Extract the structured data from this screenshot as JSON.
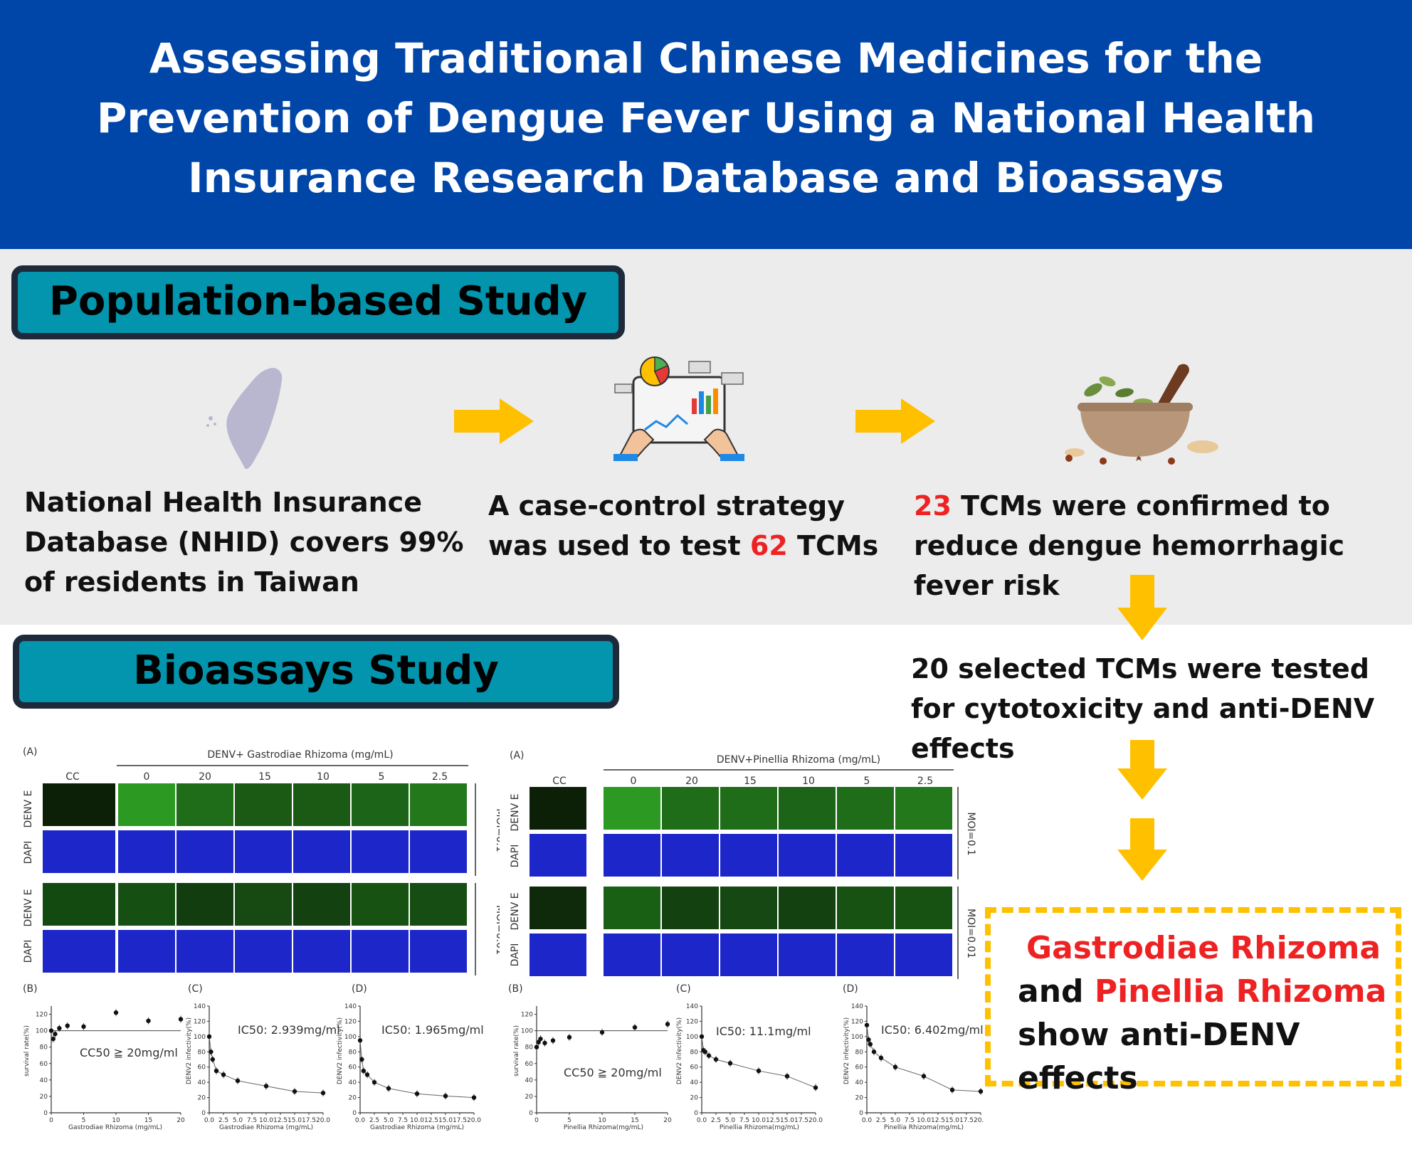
{
  "title": "Assessing Traditional Chinese Medicines for the Prevention of Dengue Fever Using a National Health Insurance Research Database and Bioassays",
  "sections": {
    "population": "Population-based Study",
    "bioassays": "Bioassays Study"
  },
  "flow": {
    "step1": "National Health Insurance Database (NHID) covers 99% of residents in Taiwan",
    "step2_before": "A case-control strategy was used to test ",
    "step2_number": "62",
    "step2_after": " TCMs",
    "step3_number": "23",
    "step3_after": " TCMs were confirmed to reduce dengue hemorrhagic fever risk",
    "step4": "20 selected TCMs were tested for cytotoxicity and anti-DENV effects"
  },
  "conclusion": {
    "herb1": "Gastrodiae Rhizoma",
    "and": "and ",
    "herb2": "Pinellia Rhizoma",
    "line3": "show anti-DENV effects"
  },
  "colors": {
    "header": "#0045a8",
    "section_label": "#0295ad",
    "arrow": "#ffc000",
    "highlight": "#ee2222"
  },
  "icons": [
    "taiwan-map-icon",
    "data-analysis-icon",
    "mortar-pestle-herbs-icon"
  ],
  "panels": {
    "gastrodiae": {
      "label_a": "(A)",
      "treatment": "DENV+ Gastrodiae Rhizoma (mg/mL)",
      "cc": "CC",
      "concs": [
        "0",
        "20",
        "15",
        "10",
        "5",
        "2.5"
      ],
      "row_labels": [
        "DENV E",
        "DAPI",
        "DENV E",
        "DAPI"
      ],
      "moi": [
        "MOI=0.1",
        "MOI=0.01"
      ],
      "label_b": "(B)",
      "label_c": "(C)",
      "label_d": "(D)",
      "b_ylabel": "survival rate(%)",
      "cd_ylabel": "DENV2 infectivity(%)",
      "xlabel": "Gastrodiae Rhizoma (mg/mL)",
      "b_annot": "CC50 ≧ 20mg/ml",
      "c_annot": "IC50: 2.939mg/ml",
      "d_annot": "IC50: 1.965mg/ml"
    },
    "pinellia": {
      "label_a": "(A)",
      "treatment": "DENV+Pinellia Rhizoma (mg/mL)",
      "cc": "CC",
      "concs": [
        "0",
        "20",
        "15",
        "10",
        "5",
        "2.5"
      ],
      "row_labels": [
        "DENV E",
        "DAPI",
        "DENV E",
        "DAPI"
      ],
      "moi": [
        "MOI=0.1",
        "MOI=0.01"
      ],
      "label_b": "(B)",
      "label_c": "(C)",
      "label_d": "(D)",
      "b_ylabel": "survival rate(%)",
      "cd_ylabel": "DENV2 infectivity(%)",
      "xlabel": "Pinellia Rhizoma(mg/mL)",
      "b_annot": "CC50 ≧ 20mg/ml",
      "c_annot": "IC50: 11.1mg/ml",
      "d_annot": "IC50: 6.402mg/ml"
    }
  },
  "axes": {
    "b_yticks": [
      "120",
      "100",
      "80",
      "60",
      "40",
      "20",
      "0"
    ],
    "b_xticks": [
      "0",
      "5",
      "10",
      "15",
      "20"
    ],
    "cd_yticks": [
      "140",
      "120",
      "100",
      "80",
      "60",
      "40",
      "20",
      "0"
    ],
    "cd_xticks": [
      "0.0",
      "2.5",
      "5.0",
      "7.5",
      "10.0",
      "12.5",
      "15.0",
      "17.5",
      "20.0"
    ]
  },
  "chart_data": [
    {
      "type": "scatter",
      "ylabel": "survival rate(%)",
      "xlabel": "Gastrodiae Rhizoma (mg/mL)",
      "xlim": [
        0,
        20
      ],
      "ylim": [
        0,
        130
      ],
      "x": [
        0,
        0.3,
        0.6,
        1.25,
        2.5,
        5,
        10,
        15,
        20
      ],
      "y": [
        100,
        90,
        96,
        103,
        106,
        105,
        122,
        112,
        114
      ]
    },
    {
      "type": "scatter",
      "ylabel": "DENV2 infectivity(%)",
      "xlabel": "Gastrodiae Rhizoma (mg/mL)",
      "xlim": [
        0,
        20
      ],
      "ylim": [
        0,
        140
      ],
      "x": [
        0,
        0.3,
        0.6,
        1.25,
        2.5,
        5,
        10,
        15,
        20
      ],
      "y": [
        100,
        80,
        70,
        55,
        50,
        42,
        35,
        28,
        26
      ]
    },
    {
      "type": "scatter",
      "ylabel": "DENV2 infectivity(%)",
      "xlabel": "Gastrodiae Rhizoma (mg/mL)",
      "xlim": [
        0,
        20
      ],
      "ylim": [
        0,
        140
      ],
      "x": [
        0,
        0.3,
        0.6,
        1.25,
        2.5,
        5,
        10,
        15,
        20
      ],
      "y": [
        95,
        70,
        55,
        50,
        40,
        32,
        25,
        22,
        20
      ]
    },
    {
      "type": "scatter",
      "ylabel": "survival rate(%)",
      "xlabel": "Pinellia Rhizoma(mg/mL)",
      "xlim": [
        0,
        20
      ],
      "ylim": [
        0,
        130
      ],
      "x": [
        0,
        0.3,
        0.6,
        1.25,
        2.5,
        5,
        10,
        15,
        20
      ],
      "y": [
        80,
        86,
        90,
        85,
        88,
        92,
        98,
        104,
        108
      ]
    },
    {
      "type": "scatter",
      "ylabel": "DENV2 infectivity(%)",
      "xlabel": "Pinellia Rhizoma(mg/mL)",
      "xlim": [
        0,
        20
      ],
      "ylim": [
        0,
        140
      ],
      "x": [
        0,
        0.3,
        0.6,
        1.25,
        2.5,
        5,
        10,
        15,
        20
      ],
      "y": [
        100,
        82,
        80,
        75,
        70,
        65,
        55,
        48,
        33
      ]
    },
    {
      "type": "scatter",
      "ylabel": "DENV2 infectivity(%)",
      "xlabel": "Pinellia Rhizoma(mg/mL)",
      "xlim": [
        0,
        20
      ],
      "ylim": [
        0,
        140
      ],
      "x": [
        0,
        0.3,
        0.6,
        1.25,
        2.5,
        5,
        10,
        15,
        20
      ],
      "y": [
        115,
        96,
        90,
        80,
        72,
        60,
        48,
        30,
        28
      ]
    }
  ]
}
